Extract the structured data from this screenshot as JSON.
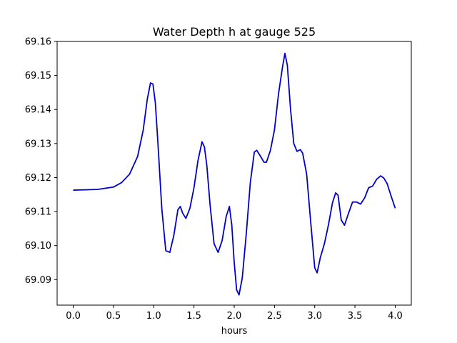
{
  "chart_data": {
    "type": "line",
    "title": "Water Depth h at gauge 525",
    "xlabel": "hours",
    "ylabel": "",
    "xlim": [
      -0.2,
      4.2
    ],
    "ylim": [
      69.0825,
      69.16
    ],
    "xticks": [
      {
        "value": 0.0,
        "label": "0.0"
      },
      {
        "value": 0.5,
        "label": "0.5"
      },
      {
        "value": 1.0,
        "label": "1.0"
      },
      {
        "value": 1.5,
        "label": "1.5"
      },
      {
        "value": 2.0,
        "label": "2.0"
      },
      {
        "value": 2.5,
        "label": "2.5"
      },
      {
        "value": 3.0,
        "label": "3.0"
      },
      {
        "value": 3.5,
        "label": "3.5"
      },
      {
        "value": 4.0,
        "label": "4.0"
      }
    ],
    "yticks": [
      {
        "value": 69.09,
        "label": "69.09"
      },
      {
        "value": 69.1,
        "label": "69.10"
      },
      {
        "value": 69.11,
        "label": "69.11"
      },
      {
        "value": 69.12,
        "label": "69.12"
      },
      {
        "value": 69.13,
        "label": "69.13"
      },
      {
        "value": 69.14,
        "label": "69.14"
      },
      {
        "value": 69.15,
        "label": "69.15"
      },
      {
        "value": 69.16,
        "label": "69.16"
      }
    ],
    "grid": false,
    "series": [
      {
        "color": "#0000cc",
        "x": [
          0.0,
          0.3,
          0.5,
          0.6,
          0.7,
          0.8,
          0.87,
          0.92,
          0.96,
          0.99,
          1.02,
          1.05,
          1.1,
          1.15,
          1.2,
          1.25,
          1.3,
          1.33,
          1.36,
          1.4,
          1.45,
          1.5,
          1.55,
          1.6,
          1.63,
          1.66,
          1.7,
          1.75,
          1.8,
          1.85,
          1.9,
          1.94,
          1.97,
          2.0,
          2.03,
          2.06,
          2.1,
          2.15,
          2.2,
          2.25,
          2.28,
          2.32,
          2.37,
          2.4,
          2.45,
          2.5,
          2.55,
          2.6,
          2.63,
          2.66,
          2.7,
          2.74,
          2.78,
          2.82,
          2.85,
          2.9,
          2.95,
          3.0,
          3.03,
          3.07,
          3.12,
          3.17,
          3.22,
          3.26,
          3.29,
          3.33,
          3.37,
          3.42,
          3.47,
          3.52,
          3.57,
          3.62,
          3.67,
          3.72,
          3.77,
          3.82,
          3.86,
          3.9,
          3.95,
          4.0
        ],
        "y": [
          69.1163,
          69.1165,
          69.1172,
          69.1185,
          69.121,
          69.1262,
          69.134,
          69.143,
          69.1478,
          69.1475,
          69.142,
          69.131,
          69.111,
          69.0985,
          69.098,
          69.103,
          69.1105,
          69.1115,
          69.1095,
          69.108,
          69.111,
          69.117,
          69.125,
          69.1305,
          69.129,
          69.1235,
          69.112,
          69.1005,
          69.098,
          69.1015,
          69.1085,
          69.1115,
          69.106,
          69.095,
          69.087,
          69.0855,
          69.0905,
          69.1035,
          69.1185,
          69.1275,
          69.128,
          69.1265,
          69.1245,
          69.1245,
          69.128,
          69.134,
          69.1445,
          69.1525,
          69.1565,
          69.153,
          69.14,
          69.13,
          69.1277,
          69.1282,
          69.1272,
          69.121,
          69.107,
          69.0935,
          69.092,
          69.0965,
          69.1005,
          69.106,
          69.1125,
          69.1155,
          69.1148,
          69.1075,
          69.106,
          69.1095,
          69.1128,
          69.1128,
          69.1122,
          69.114,
          69.117,
          69.1175,
          69.1195,
          69.1205,
          69.1198,
          69.1182,
          69.1145,
          69.111
        ]
      }
    ]
  }
}
